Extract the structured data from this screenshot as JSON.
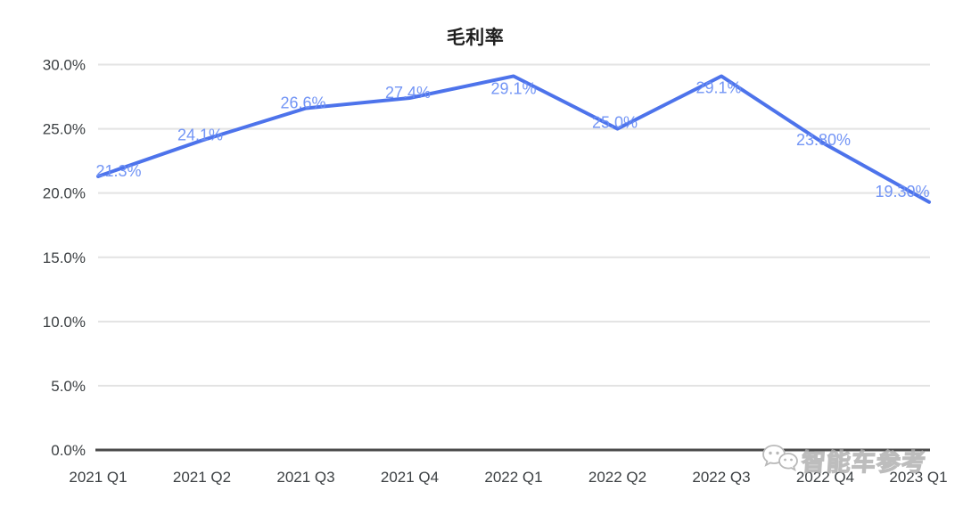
{
  "chart_data": {
    "type": "line",
    "title": "毛利率",
    "categories": [
      "2021 Q1",
      "2021 Q2",
      "2021 Q3",
      "2021 Q4",
      "2022 Q1",
      "2022 Q2",
      "2022 Q3",
      "2022 Q4",
      "2023 Q1"
    ],
    "values": [
      21.3,
      24.1,
      26.6,
      27.4,
      29.1,
      25.0,
      29.1,
      23.8,
      19.3
    ],
    "point_labels": [
      "21.3%",
      "24.1%",
      "26.6%",
      "27.4%",
      "29.1%",
      "25.0%",
      "29.1%",
      "23.80%",
      "19.30%"
    ],
    "y_ticks": [
      {
        "value": 0,
        "label": "0.0%"
      },
      {
        "value": 5,
        "label": "5.0%"
      },
      {
        "value": 10,
        "label": "10.0%"
      },
      {
        "value": 15,
        "label": "15.0%"
      },
      {
        "value": 20,
        "label": "20.0%"
      },
      {
        "value": 25,
        "label": "25.0%"
      },
      {
        "value": 30,
        "label": "30.0%"
      }
    ],
    "ylim": [
      0,
      30
    ],
    "xlabel": "",
    "ylabel": "",
    "grid": true,
    "legend_position": "none",
    "colors": {
      "line": "#4d73eb",
      "data_label": "#6b8ff4",
      "grid_line": "#e3e3e3",
      "axis_line": "#4a4a4a",
      "tick_text": "#3c4043",
      "title_text": "#1f1f1f"
    }
  },
  "watermark": {
    "icon": "wechat-icon",
    "text": "智能车参考"
  }
}
